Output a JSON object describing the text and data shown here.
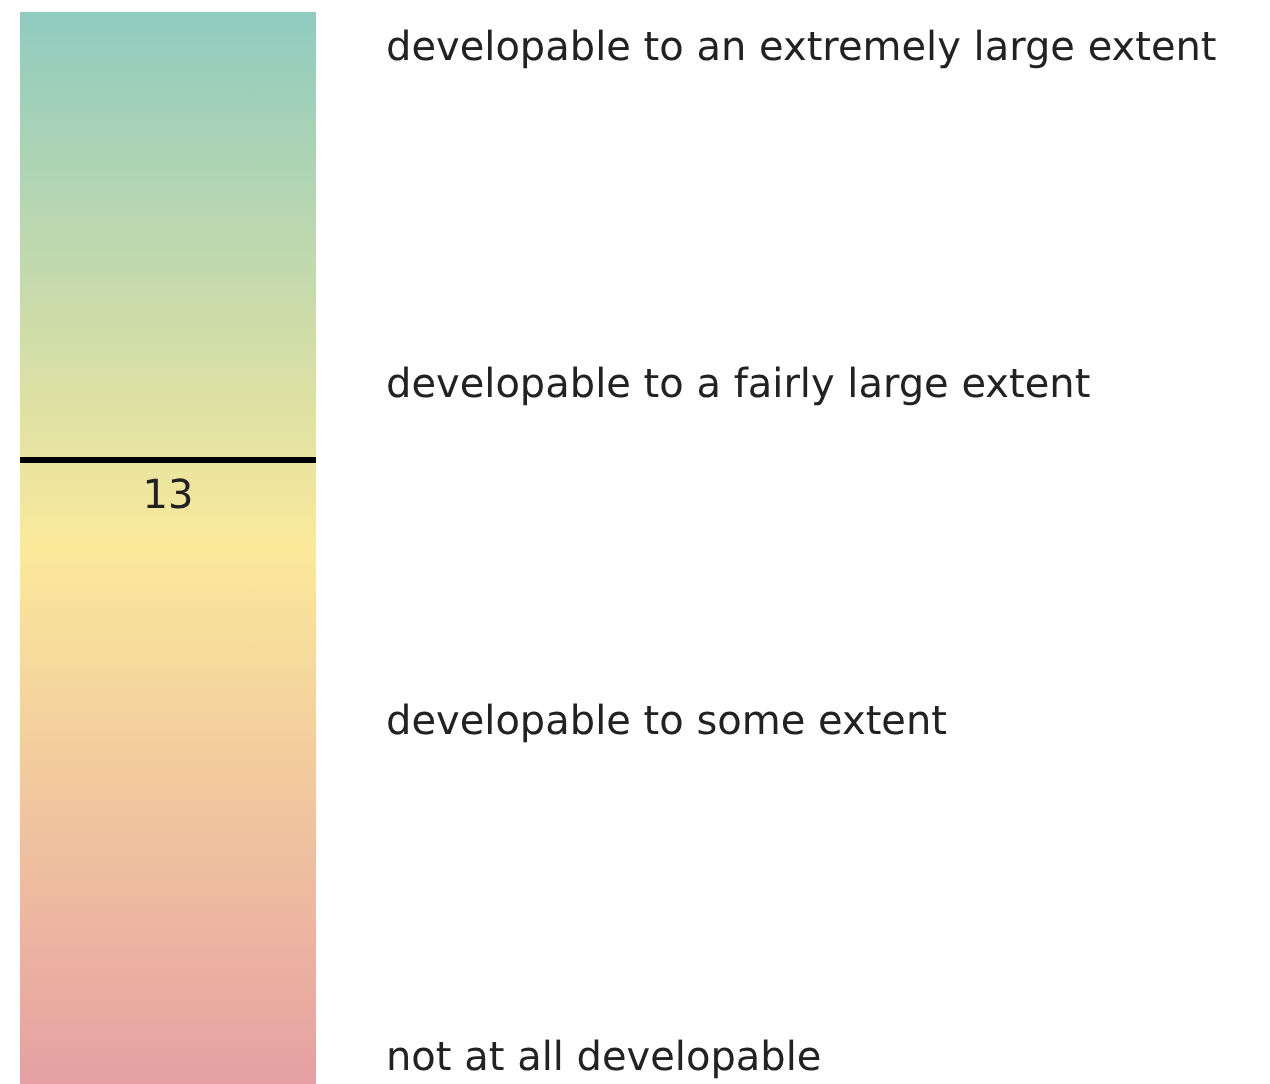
{
  "chart_data": {
    "type": "other",
    "annotations": [
      "developable to an extremely large extent",
      "developable to a fairly large extent",
      "developable to some extent",
      "not at all developable"
    ],
    "values": [
      13
    ],
    "data_labels": true
  }
}
